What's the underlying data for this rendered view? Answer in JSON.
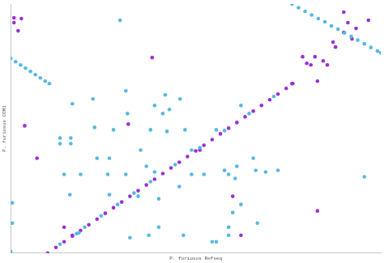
{
  "chart_data": {
    "type": "scatter",
    "x_label": "P. furiosus Refseq",
    "y_label": "P. furiosus COM1",
    "xlim": [
      0,
      450
    ],
    "ylim": [
      0,
      307
    ],
    "tick_labels": false,
    "grid": false,
    "series": [
      {
        "color": "#55b8e3",
        "marker": "circle",
        "x": [
          60,
          80,
          90,
          110,
          130,
          150,
          170,
          200,
          230,
          260,
          290,
          320,
          342,
          350,
          358,
          366,
          374,
          382,
          390,
          398,
          406,
          414,
          422,
          430,
          438,
          446,
          450,
          0,
          6,
          12,
          18,
          24,
          30,
          36,
          42,
          47,
          133,
          75,
          100,
          140,
          188,
          206,
          193,
          185,
          175,
          60,
          73,
          60,
          73,
          102,
          125,
          142,
          158,
          170,
          190,
          212,
          220,
          250,
          280,
          120,
          105,
          65,
          85,
          118,
          140,
          165,
          175,
          72,
          120,
          155,
          180,
          205,
          220,
          235,
          260,
          265,
          275,
          295,
          298,
          310,
          325,
          273,
          2,
          2,
          430,
          145,
          168,
          180,
          210,
          245,
          250,
          265,
          265,
          270,
          300,
          280,
          0,
          83
        ],
        "y": [
          11,
          24,
          32,
          46,
          60,
          74,
          88,
          109,
          130,
          151,
          172,
          193,
          307,
          302.5,
          298,
          293.6,
          289,
          285,
          280,
          276,
          271.5,
          267,
          262.5,
          258,
          253.5,
          249,
          247,
          240,
          236,
          232,
          228,
          224,
          220,
          216,
          212,
          209,
          287,
          184,
          190,
          200,
          195,
          190,
          177,
          172,
          182,
          142,
          142,
          135,
          135,
          155,
          152,
          172,
          127,
          152,
          150,
          152,
          127,
          152,
          182,
          117,
          117,
          97,
          97,
          97,
          97,
          107,
          100,
          72,
          72,
          70,
          67,
          82,
          97,
          97,
          102,
          97,
          107,
          117,
          102,
          100,
          102,
          92,
          62,
          37,
          94,
          19,
          22,
          32,
          22,
          14,
          14,
          22,
          32,
          50,
          37,
          60,
          2,
          25
        ]
      },
      {
        "color": "#9b2fd6",
        "marker": "circle",
        "x": [
          45,
          55,
          65,
          75,
          85,
          95,
          105,
          115,
          125,
          135,
          145,
          155,
          165,
          175,
          185,
          195,
          205,
          215,
          225,
          235,
          245,
          255,
          265,
          275,
          285,
          295,
          305,
          315,
          325,
          335,
          343,
          4,
          13,
          9,
          4,
          172,
          17,
          32,
          143,
          230,
          270,
          373,
          280,
          355,
          360,
          365,
          373,
          380,
          385,
          392,
          395,
          405,
          410,
          415,
          420,
          435,
          405,
          342,
          370,
          65,
          75
        ],
        "y": [
          0,
          7,
          14,
          21,
          28,
          35,
          42,
          49,
          56,
          63,
          70,
          77,
          84,
          91,
          98,
          105,
          112,
          119,
          126,
          133,
          140,
          147,
          154,
          161,
          168,
          175,
          182,
          189,
          196,
          203,
          209,
          290,
          289,
          274,
          284,
          241,
          157,
          117,
          159,
          127,
          70,
          52,
          22,
          242,
          234,
          232,
          212,
          237,
          232,
          260,
          254,
          272,
          284,
          264,
          277,
          287,
          297,
          209,
          242,
          32,
          22
        ]
      }
    ]
  }
}
